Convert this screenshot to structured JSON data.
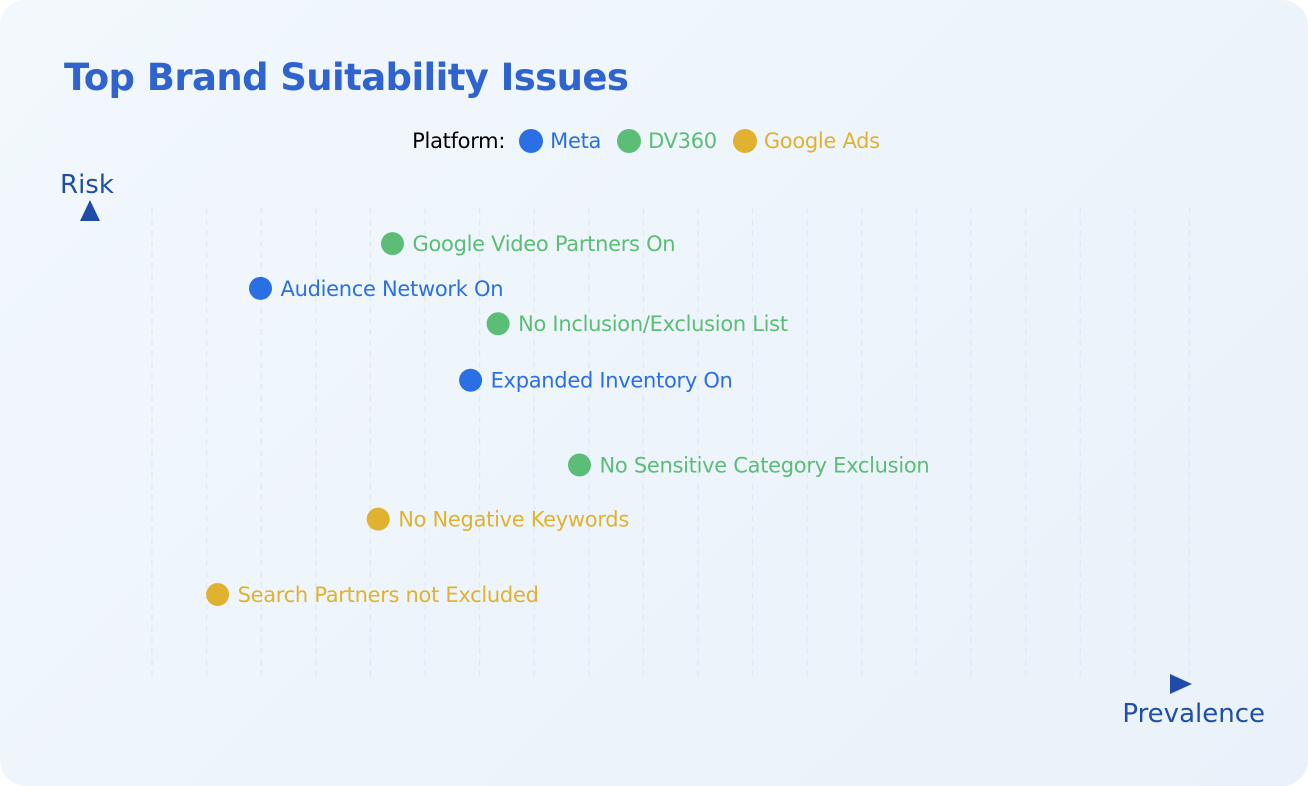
{
  "chart_data": {
    "type": "scatter",
    "title": "Top Brand Suitability Issues",
    "xlabel": "Prevalence",
    "ylabel": "Risk",
    "legend_title": "Platform:",
    "legend_position": "top-center",
    "grid": "vertical-dashed",
    "xlim": [
      0,
      100
    ],
    "ylim": [
      0,
      100
    ],
    "series": [
      {
        "name": "Meta",
        "color": "#2a6fe3",
        "points": [
          {
            "label": "Audience Network On",
            "x": 15.5,
            "y": 84.0
          },
          {
            "label": "Expanded Inventory On",
            "x": 34.6,
            "y": 64.5
          }
        ]
      },
      {
        "name": "DV360",
        "color": "#5bbd76",
        "points": [
          {
            "label": "Google Video Partners On",
            "x": 27.5,
            "y": 93.5
          },
          {
            "label": "No Inclusion/Exclusion List",
            "x": 37.1,
            "y": 76.5
          },
          {
            "label": "No Sensitive Category Exclusion",
            "x": 44.5,
            "y": 46.5
          }
        ]
      },
      {
        "name": "Google Ads",
        "color": "#e0b22f",
        "points": [
          {
            "label": "No Negative Keywords",
            "x": 26.2,
            "y": 35.0
          },
          {
            "label": "Search Partners not Excluded",
            "x": 11.6,
            "y": 19.0
          }
        ]
      }
    ]
  },
  "colors": {
    "title": "#2f64cf",
    "axis_dark": "#1f4ca8",
    "axis_light": "#3f86f0",
    "axis_label": "#1f4fa6",
    "grid": "#e1e9f3"
  }
}
